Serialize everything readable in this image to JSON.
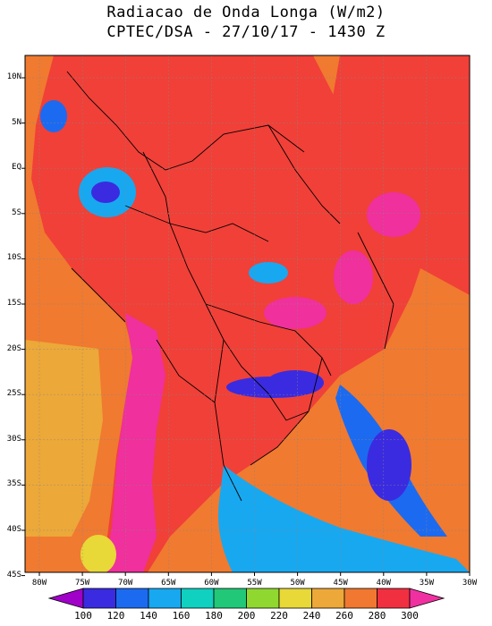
{
  "title_line1": "Radiacao de Onda Longa (W/m2)",
  "title_line2": "CPTEC/DSA - 27/10/17 - 1430 Z",
  "lat_labels": [
    "10N",
    "5N",
    "EQ",
    "5S",
    "10S",
    "15S",
    "20S",
    "25S",
    "30S",
    "35S",
    "40S",
    "45S"
  ],
  "lon_labels": [
    "80W",
    "75W",
    "70W",
    "65W",
    "60W",
    "55W",
    "50W",
    "45W",
    "40W",
    "35W",
    "30W"
  ],
  "colorbar": {
    "labels": [
      "100",
      "120",
      "140",
      "160",
      "180",
      "200",
      "220",
      "240",
      "260",
      "280",
      "300"
    ],
    "colors": [
      "#a000c8",
      "#3a2be0",
      "#1c6af0",
      "#18a8f0",
      "#10d0c0",
      "#20c878",
      "#90d830",
      "#e8d838",
      "#eca838",
      "#f07830",
      "#f03040",
      "#f030a0"
    ]
  },
  "map_colors": {
    "ocean_base": "#f07a30",
    "land_base": "#f04038",
    "magenta": "#f0309c",
    "blue_dark": "#3a2be0",
    "blue": "#1c6af0",
    "cyan": "#18a8f0",
    "yellow": "#e8d838",
    "orange_light": "#eca838"
  }
}
